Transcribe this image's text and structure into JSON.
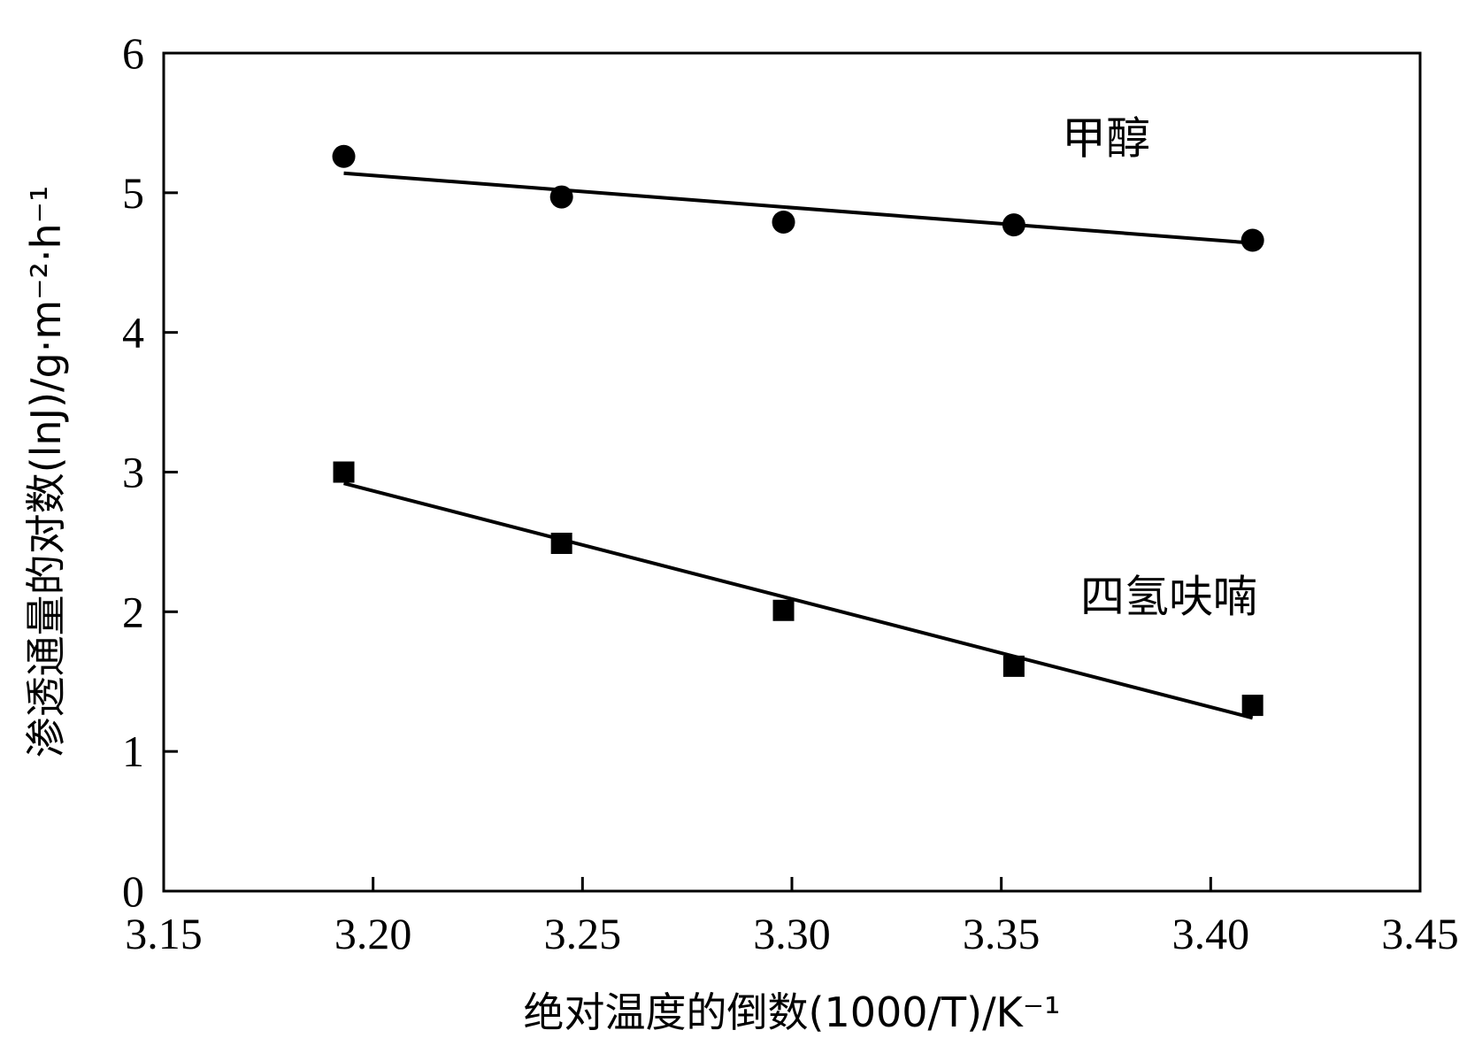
{
  "chart_data": {
    "type": "scatter",
    "xlabel": "绝对温度的倒数(1000/T)/K⁻¹",
    "ylabel": "渗透通量的对数(lnJ)/g·m⁻²·h⁻¹",
    "xlim": [
      3.15,
      3.45
    ],
    "ylim": [
      0,
      6
    ],
    "x_ticks": [
      "3.15",
      "3.20",
      "3.25",
      "3.30",
      "3.35",
      "3.40",
      "3.45"
    ],
    "y_ticks": [
      "0",
      "1",
      "2",
      "3",
      "4",
      "5",
      "6"
    ],
    "grid": false,
    "series": [
      {
        "name": "甲醇",
        "marker": "circle",
        "x": [
          3.193,
          3.245,
          3.298,
          3.353,
          3.41
        ],
        "y": [
          5.26,
          4.97,
          4.79,
          4.77,
          4.66
        ],
        "fit": {
          "x": [
            3.193,
            3.41
          ],
          "y": [
            5.14,
            4.64
          ]
        }
      },
      {
        "name": "四氢呋喃",
        "marker": "square",
        "x": [
          3.193,
          3.245,
          3.298,
          3.353,
          3.41
        ],
        "y": [
          3.0,
          2.49,
          2.01,
          1.61,
          1.33
        ],
        "fit": {
          "x": [
            3.193,
            3.41
          ],
          "y": [
            2.92,
            1.24
          ]
        }
      }
    ],
    "annotations": [
      {
        "text": "甲醇",
        "x": 3.375,
        "y": 5.28
      },
      {
        "text": "四氢呋喃",
        "x": 3.39,
        "y": 2.0
      }
    ]
  }
}
